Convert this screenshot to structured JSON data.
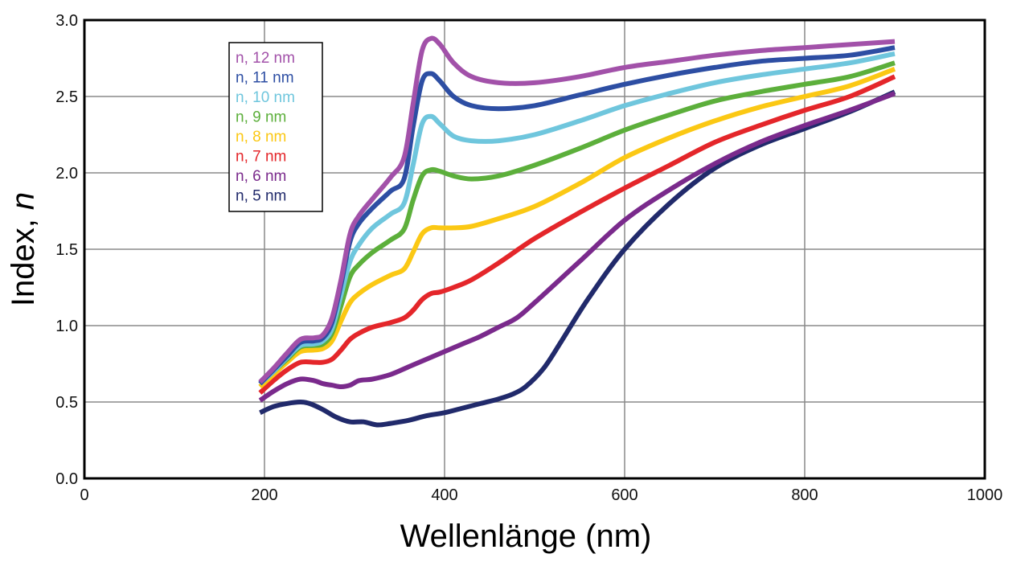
{
  "chart_data": {
    "type": "line",
    "xlabel": "Wellenlänge (nm)",
    "ylabel_main": "Index, ",
    "ylabel_var": "n",
    "xlim": [
      0,
      1000
    ],
    "ylim": [
      0,
      3.0
    ],
    "x_ticks": [
      "0",
      "200",
      "400",
      "600",
      "800",
      "1000"
    ],
    "y_ticks": [
      "0.0",
      "0.5",
      "1.0",
      "1.5",
      "2.0",
      "2.5",
      "3.0"
    ],
    "grid": true,
    "legend_position": "top-left",
    "series": [
      {
        "name": "n, 12 nm",
        "color": "#a251a9",
        "x": [
          195,
          210,
          225,
          240,
          255,
          265,
          275,
          285,
          295,
          305,
          320,
          340,
          355,
          365,
          375,
          385,
          395,
          410,
          430,
          460,
          500,
          550,
          600,
          650,
          700,
          750,
          800,
          850,
          900
        ],
        "y": [
          0.63,
          0.72,
          0.82,
          0.91,
          0.92,
          0.94,
          1.05,
          1.3,
          1.6,
          1.72,
          1.83,
          1.97,
          2.1,
          2.45,
          2.8,
          2.88,
          2.84,
          2.72,
          2.63,
          2.59,
          2.59,
          2.63,
          2.69,
          2.73,
          2.77,
          2.8,
          2.82,
          2.84,
          2.86
        ]
      },
      {
        "name": "n, 11 nm",
        "color": "#2d4ea3",
        "x": [
          195,
          210,
          225,
          240,
          255,
          265,
          275,
          285,
          295,
          305,
          320,
          340,
          355,
          365,
          375,
          385,
          395,
          410,
          430,
          460,
          500,
          550,
          600,
          650,
          700,
          750,
          800,
          850,
          900
        ],
        "y": [
          0.62,
          0.71,
          0.8,
          0.89,
          0.9,
          0.92,
          1.02,
          1.27,
          1.55,
          1.67,
          1.77,
          1.88,
          1.96,
          2.3,
          2.6,
          2.65,
          2.6,
          2.5,
          2.44,
          2.42,
          2.44,
          2.51,
          2.58,
          2.64,
          2.69,
          2.73,
          2.75,
          2.77,
          2.82
        ]
      },
      {
        "name": "n, 10 nm",
        "color": "#6fc6dd",
        "x": [
          195,
          210,
          225,
          240,
          255,
          265,
          275,
          285,
          295,
          305,
          320,
          340,
          355,
          365,
          375,
          385,
          395,
          410,
          430,
          460,
          500,
          550,
          600,
          650,
          700,
          750,
          800,
          850,
          900
        ],
        "y": [
          0.62,
          0.7,
          0.79,
          0.87,
          0.88,
          0.9,
          0.98,
          1.2,
          1.42,
          1.53,
          1.64,
          1.73,
          1.8,
          2.05,
          2.32,
          2.37,
          2.32,
          2.24,
          2.21,
          2.21,
          2.25,
          2.34,
          2.44,
          2.52,
          2.59,
          2.64,
          2.68,
          2.72,
          2.78
        ]
      },
      {
        "name": "n, 9 nm",
        "color": "#5caf3b",
        "x": [
          195,
          210,
          225,
          240,
          255,
          265,
          275,
          285,
          295,
          305,
          320,
          340,
          355,
          365,
          375,
          385,
          395,
          410,
          430,
          460,
          500,
          550,
          600,
          650,
          700,
          750,
          800,
          850,
          900
        ],
        "y": [
          0.62,
          0.7,
          0.78,
          0.86,
          0.87,
          0.88,
          0.95,
          1.13,
          1.32,
          1.4,
          1.48,
          1.56,
          1.63,
          1.82,
          1.98,
          2.02,
          2.01,
          1.98,
          1.96,
          1.98,
          2.05,
          2.16,
          2.28,
          2.38,
          2.47,
          2.53,
          2.58,
          2.63,
          2.72
        ]
      },
      {
        "name": "n, 8 nm",
        "color": "#fbc814",
        "x": [
          195,
          210,
          225,
          240,
          255,
          265,
          275,
          285,
          295,
          305,
          320,
          340,
          355,
          365,
          375,
          385,
          395,
          410,
          430,
          460,
          500,
          550,
          600,
          650,
          700,
          750,
          800,
          850,
          900
        ],
        "y": [
          0.6,
          0.68,
          0.76,
          0.83,
          0.84,
          0.85,
          0.9,
          1.03,
          1.15,
          1.21,
          1.27,
          1.33,
          1.37,
          1.48,
          1.6,
          1.64,
          1.64,
          1.64,
          1.65,
          1.7,
          1.78,
          1.93,
          2.1,
          2.23,
          2.34,
          2.43,
          2.5,
          2.57,
          2.68
        ]
      },
      {
        "name": "n, 7 nm",
        "color": "#e4262a",
        "x": [
          195,
          210,
          225,
          240,
          255,
          265,
          275,
          285,
          295,
          305,
          320,
          340,
          355,
          365,
          375,
          385,
          395,
          410,
          430,
          460,
          500,
          550,
          600,
          650,
          700,
          750,
          800,
          850,
          900
        ],
        "y": [
          0.56,
          0.64,
          0.71,
          0.76,
          0.76,
          0.76,
          0.78,
          0.84,
          0.91,
          0.95,
          0.99,
          1.02,
          1.05,
          1.1,
          1.17,
          1.21,
          1.22,
          1.25,
          1.3,
          1.41,
          1.57,
          1.74,
          1.9,
          2.05,
          2.2,
          2.31,
          2.41,
          2.5,
          2.63
        ]
      },
      {
        "name": "n, 6 nm",
        "color": "#7a2a8c",
        "x": [
          195,
          210,
          225,
          240,
          255,
          265,
          275,
          285,
          295,
          305,
          320,
          340,
          360,
          380,
          400,
          420,
          440,
          460,
          480,
          500,
          550,
          600,
          650,
          700,
          750,
          800,
          850,
          900
        ],
        "y": [
          0.51,
          0.57,
          0.62,
          0.65,
          0.64,
          0.62,
          0.61,
          0.6,
          0.61,
          0.64,
          0.65,
          0.68,
          0.73,
          0.78,
          0.83,
          0.88,
          0.93,
          0.99,
          1.05,
          1.15,
          1.42,
          1.69,
          1.89,
          2.06,
          2.2,
          2.31,
          2.41,
          2.52
        ]
      },
      {
        "name": "n, 5 nm",
        "color": "#212a6b",
        "x": [
          195,
          210,
          225,
          240,
          250,
          265,
          280,
          295,
          310,
          325,
          340,
          360,
          380,
          400,
          420,
          440,
          460,
          475,
          490,
          510,
          530,
          560,
          600,
          650,
          700,
          750,
          800,
          850,
          900
        ],
        "y": [
          0.43,
          0.47,
          0.49,
          0.5,
          0.49,
          0.45,
          0.4,
          0.37,
          0.37,
          0.35,
          0.36,
          0.38,
          0.41,
          0.43,
          0.46,
          0.49,
          0.52,
          0.55,
          0.6,
          0.72,
          0.9,
          1.18,
          1.5,
          1.8,
          2.03,
          2.18,
          2.29,
          2.4,
          2.53
        ]
      }
    ]
  }
}
